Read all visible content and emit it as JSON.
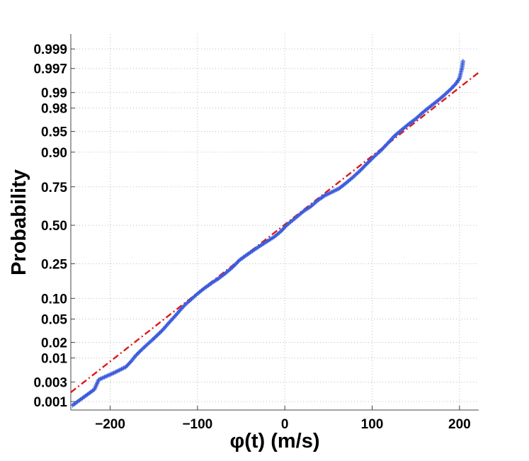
{
  "chart_data": {
    "type": "scatter",
    "subtype": "normal-probability-plot",
    "title": "",
    "xlabel": "φ(t) (m/s)",
    "ylabel": "Probability",
    "xlim": [
      -245,
      222
    ],
    "y_scale": "normal-probability",
    "ylim_probability": [
      0.0006,
      0.9996
    ],
    "x_ticks": [
      -200,
      -100,
      0,
      100,
      200
    ],
    "x_tick_labels": [
      "−200",
      "−100",
      "0",
      "100",
      "200"
    ],
    "y_ticks": [
      0.001,
      0.003,
      0.01,
      0.02,
      0.05,
      0.1,
      0.25,
      0.5,
      0.75,
      0.9,
      0.95,
      0.98,
      0.99,
      0.997,
      0.999
    ],
    "y_tick_labels": [
      "0.001",
      "0.003",
      "0.01",
      "0.02",
      "0.05",
      "0.10",
      "0.25",
      "0.50",
      "0.75",
      "0.90",
      "0.95",
      "0.98",
      "0.99",
      "0.997",
      "0.999"
    ],
    "grid": true,
    "legend": "none",
    "series": [
      {
        "marker": "+",
        "color": "#3a5bdc",
        "points": [
          {
            "x": -243,
            "p": 0.0008
          },
          {
            "x": -218,
            "p": 0.002
          },
          {
            "x": -213,
            "p": 0.0034
          },
          {
            "x": -196,
            "p": 0.0048
          },
          {
            "x": -182,
            "p": 0.0065
          },
          {
            "x": -176,
            "p": 0.0085
          },
          {
            "x": -171,
            "p": 0.011
          },
          {
            "x": -165,
            "p": 0.014
          },
          {
            "x": -158,
            "p": 0.018
          },
          {
            "x": -152,
            "p": 0.022
          },
          {
            "x": -146,
            "p": 0.027
          },
          {
            "x": -140,
            "p": 0.033
          },
          {
            "x": -135,
            "p": 0.04
          },
          {
            "x": -130,
            "p": 0.048
          },
          {
            "x": -125,
            "p": 0.057
          },
          {
            "x": -120,
            "p": 0.068
          },
          {
            "x": -115,
            "p": 0.08
          },
          {
            "x": -108,
            "p": 0.095
          },
          {
            "x": -100,
            "p": 0.115
          },
          {
            "x": -92,
            "p": 0.135
          },
          {
            "x": -84,
            "p": 0.155
          },
          {
            "x": -76,
            "p": 0.175
          },
          {
            "x": -68,
            "p": 0.2
          },
          {
            "x": -60,
            "p": 0.23
          },
          {
            "x": -52,
            "p": 0.27
          },
          {
            "x": -44,
            "p": 0.3
          },
          {
            "x": -36,
            "p": 0.33
          },
          {
            "x": -28,
            "p": 0.36
          },
          {
            "x": -20,
            "p": 0.39
          },
          {
            "x": -12,
            "p": 0.42
          },
          {
            "x": -4,
            "p": 0.46
          },
          {
            "x": 2,
            "p": 0.5
          },
          {
            "x": 8,
            "p": 0.53
          },
          {
            "x": 14,
            "p": 0.56
          },
          {
            "x": 22,
            "p": 0.6
          },
          {
            "x": 30,
            "p": 0.63
          },
          {
            "x": 38,
            "p": 0.67
          },
          {
            "x": 46,
            "p": 0.7
          },
          {
            "x": 54,
            "p": 0.72
          },
          {
            "x": 62,
            "p": 0.74
          },
          {
            "x": 70,
            "p": 0.77
          },
          {
            "x": 78,
            "p": 0.8
          },
          {
            "x": 86,
            "p": 0.83
          },
          {
            "x": 94,
            "p": 0.86
          },
          {
            "x": 102,
            "p": 0.885
          },
          {
            "x": 110,
            "p": 0.905
          },
          {
            "x": 118,
            "p": 0.925
          },
          {
            "x": 126,
            "p": 0.942
          },
          {
            "x": 134,
            "p": 0.953
          },
          {
            "x": 142,
            "p": 0.962
          },
          {
            "x": 150,
            "p": 0.969
          },
          {
            "x": 158,
            "p": 0.976
          },
          {
            "x": 166,
            "p": 0.981
          },
          {
            "x": 174,
            "p": 0.985
          },
          {
            "x": 182,
            "p": 0.9885
          },
          {
            "x": 190,
            "p": 0.9915
          },
          {
            "x": 196,
            "p": 0.9935
          },
          {
            "x": 200,
            "p": 0.995
          },
          {
            "x": 203,
            "p": 0.9972
          },
          {
            "x": 204,
            "p": 0.998
          }
        ]
      }
    ],
    "reference_line": {
      "style": "dash-dot",
      "color": "#e01818",
      "x": [
        -245,
        222
      ],
      "p": [
        0.0017,
        0.9963
      ]
    }
  }
}
